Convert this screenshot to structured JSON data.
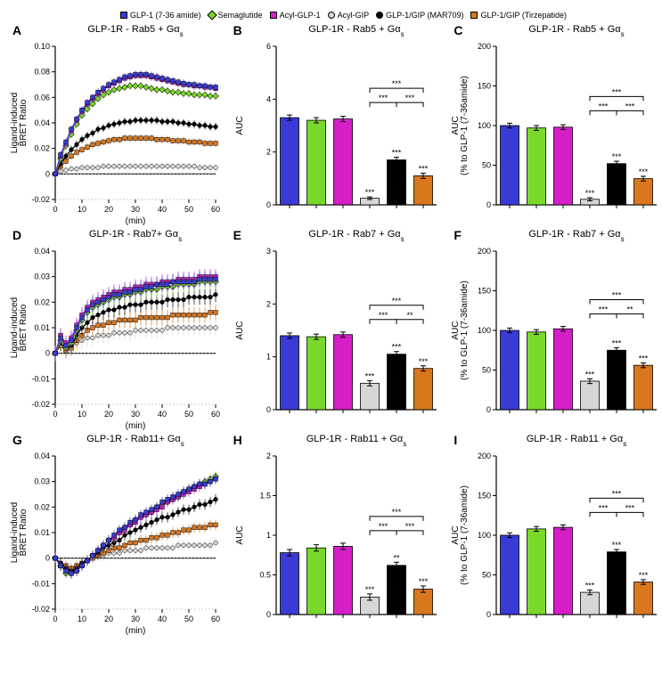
{
  "colors": {
    "glp1736": "#3a3ad6",
    "semaglutide": "#7ad82a",
    "acylglp1": "#d61fc8",
    "acylgip": "#d6d6d6",
    "mar709": "#000000",
    "tirzepatide": "#d9771f",
    "axis": "#000000",
    "grid": "#e0e0e0",
    "bg": "#ffffff"
  },
  "legend": [
    {
      "label": "GLP-1 (7-36 amide)",
      "color": "#3a3ad6",
      "shape": "square"
    },
    {
      "label": "Semaglutide",
      "color": "#7ad82a",
      "shape": "diamond"
    },
    {
      "label": "Acyl-GLP-1",
      "color": "#d61fc8",
      "shape": "square"
    },
    {
      "label": "Acyl-GIP",
      "color": "#d6d6d6",
      "shape": "circle"
    },
    {
      "label": "GLP-1/GIP (MAR709)",
      "color": "#000000",
      "shape": "circle"
    },
    {
      "label": "GLP-1/GIP (Tirzepatide)",
      "color": "#d9771f",
      "shape": "square"
    }
  ],
  "timepoints": [
    0,
    2,
    4,
    6,
    8,
    10,
    12,
    14,
    16,
    18,
    20,
    22,
    24,
    26,
    28,
    30,
    32,
    34,
    36,
    38,
    40,
    42,
    44,
    46,
    48,
    50,
    52,
    54,
    56,
    58,
    60
  ],
  "panels": {
    "A": {
      "title": "GLP-1R - Rab5 + Gα_s",
      "ylabel": "Ligand-induced\nBRET Ratio",
      "xlabel": "(min)",
      "ylim": [
        -0.02,
        0.1
      ],
      "yticks": [
        -0.02,
        0,
        0.02,
        0.04,
        0.06,
        0.08,
        0.1
      ],
      "xlim": [
        0,
        60
      ],
      "xticks": [
        0,
        10,
        20,
        30,
        40,
        50,
        60
      ],
      "series": {
        "glp1736": [
          0,
          0.015,
          0.025,
          0.035,
          0.043,
          0.05,
          0.056,
          0.06,
          0.064,
          0.067,
          0.07,
          0.072,
          0.074,
          0.076,
          0.077,
          0.078,
          0.078,
          0.078,
          0.077,
          0.076,
          0.075,
          0.074,
          0.073,
          0.072,
          0.071,
          0.07,
          0.07,
          0.069,
          0.069,
          0.068,
          0.068
        ],
        "semaglutide": [
          0,
          0.012,
          0.022,
          0.031,
          0.039,
          0.046,
          0.051,
          0.055,
          0.059,
          0.062,
          0.064,
          0.066,
          0.067,
          0.068,
          0.069,
          0.069,
          0.069,
          0.068,
          0.067,
          0.066,
          0.066,
          0.065,
          0.064,
          0.064,
          0.063,
          0.063,
          0.062,
          0.062,
          0.062,
          0.061,
          0.061
        ],
        "acylglp1": [
          0,
          0.014,
          0.024,
          0.034,
          0.042,
          0.049,
          0.055,
          0.059,
          0.063,
          0.066,
          0.069,
          0.071,
          0.073,
          0.075,
          0.076,
          0.077,
          0.077,
          0.077,
          0.076,
          0.075,
          0.074,
          0.073,
          0.072,
          0.071,
          0.07,
          0.07,
          0.069,
          0.069,
          0.068,
          0.068,
          0.067
        ],
        "acylgip": [
          0,
          0.002,
          0.003,
          0.004,
          0.004,
          0.005,
          0.005,
          0.005,
          0.005,
          0.006,
          0.006,
          0.006,
          0.006,
          0.006,
          0.006,
          0.006,
          0.006,
          0.006,
          0.006,
          0.006,
          0.006,
          0.006,
          0.006,
          0.006,
          0.006,
          0.006,
          0.006,
          0.005,
          0.005,
          0.005,
          0.005
        ],
        "mar709": [
          0,
          0.008,
          0.014,
          0.019,
          0.023,
          0.027,
          0.03,
          0.032,
          0.035,
          0.036,
          0.038,
          0.039,
          0.04,
          0.041,
          0.041,
          0.042,
          0.042,
          0.042,
          0.042,
          0.042,
          0.041,
          0.041,
          0.041,
          0.04,
          0.04,
          0.039,
          0.039,
          0.038,
          0.038,
          0.037,
          0.037
        ],
        "tirzepatide": [
          0,
          0.006,
          0.01,
          0.014,
          0.017,
          0.019,
          0.021,
          0.023,
          0.024,
          0.025,
          0.026,
          0.027,
          0.027,
          0.028,
          0.028,
          0.028,
          0.028,
          0.028,
          0.028,
          0.027,
          0.027,
          0.027,
          0.026,
          0.026,
          0.026,
          0.025,
          0.025,
          0.025,
          0.024,
          0.024,
          0.024
        ]
      },
      "err": 0.003
    },
    "B": {
      "title": "GLP-1R - Rab5 + Gα_s",
      "ylabel": "AUC",
      "ylim": [
        0,
        6
      ],
      "yticks": [
        0,
        2,
        4,
        6
      ],
      "bars": [
        {
          "k": "glp1736",
          "v": 3.3,
          "e": 0.1
        },
        {
          "k": "semaglutide",
          "v": 3.2,
          "e": 0.1
        },
        {
          "k": "acylglp1",
          "v": 3.25,
          "e": 0.1
        },
        {
          "k": "acylgip",
          "v": 0.25,
          "e": 0.05,
          "sig": "***"
        },
        {
          "k": "mar709",
          "v": 1.7,
          "e": 0.1,
          "sig": "***"
        },
        {
          "k": "tirzepatide",
          "v": 1.1,
          "e": 0.1,
          "sig": "***"
        }
      ],
      "brackets": [
        {
          "a": 3,
          "b": 4,
          "lvl": 0,
          "sig": "***"
        },
        {
          "a": 3,
          "b": 5,
          "lvl": 1,
          "sig": "***"
        },
        {
          "a": 4,
          "b": 5,
          "lvl": 0,
          "sig": "***"
        }
      ]
    },
    "C": {
      "title": "GLP-1R - Rab5 + Gα_s",
      "ylabel": "AUC\n(% to GLP-1 (7-36amide)",
      "ylim": [
        0,
        200
      ],
      "yticks": [
        0,
        50,
        100,
        150,
        200
      ],
      "bars": [
        {
          "k": "glp1736",
          "v": 100,
          "e": 3
        },
        {
          "k": "semaglutide",
          "v": 97,
          "e": 3
        },
        {
          "k": "acylglp1",
          "v": 98,
          "e": 3
        },
        {
          "k": "acylgip",
          "v": 7,
          "e": 2,
          "sig": "***"
        },
        {
          "k": "mar709",
          "v": 52,
          "e": 3,
          "sig": "***"
        },
        {
          "k": "tirzepatide",
          "v": 33,
          "e": 3,
          "sig": "***"
        }
      ],
      "brackets": [
        {
          "a": 3,
          "b": 4,
          "lvl": 0,
          "sig": "***"
        },
        {
          "a": 3,
          "b": 5,
          "lvl": 1,
          "sig": "***"
        },
        {
          "a": 4,
          "b": 5,
          "lvl": 0,
          "sig": "***"
        }
      ]
    },
    "D": {
      "title": "GLP-1R - Rab7+ Gα_s",
      "ylabel": "Ligand-induced\nBRET Ratio",
      "xlabel": "(min)",
      "ylim": [
        -0.02,
        0.04
      ],
      "yticks": [
        -0.02,
        -0.01,
        0,
        0.01,
        0.02,
        0.03,
        0.04
      ],
      "xlim": [
        0,
        60
      ],
      "xticks": [
        0,
        10,
        20,
        30,
        40,
        50,
        60
      ],
      "series": {
        "glp1736": [
          0,
          0.006,
          0.003,
          0.005,
          0.01,
          0.014,
          0.017,
          0.019,
          0.02,
          0.021,
          0.022,
          0.023,
          0.023,
          0.024,
          0.024,
          0.025,
          0.025,
          0.026,
          0.026,
          0.027,
          0.027,
          0.027,
          0.028,
          0.028,
          0.028,
          0.028,
          0.028,
          0.029,
          0.029,
          0.029,
          0.029
        ],
        "semaglutide": [
          0,
          0.005,
          0.002,
          0.004,
          0.009,
          0.013,
          0.016,
          0.018,
          0.019,
          0.02,
          0.021,
          0.022,
          0.022,
          0.023,
          0.023,
          0.024,
          0.024,
          0.025,
          0.025,
          0.025,
          0.026,
          0.026,
          0.026,
          0.027,
          0.027,
          0.027,
          0.027,
          0.028,
          0.028,
          0.028,
          0.028
        ],
        "acylglp1": [
          0,
          0.007,
          0.004,
          0.006,
          0.011,
          0.015,
          0.018,
          0.02,
          0.021,
          0.022,
          0.023,
          0.024,
          0.024,
          0.025,
          0.025,
          0.026,
          0.026,
          0.027,
          0.027,
          0.027,
          0.028,
          0.028,
          0.028,
          0.029,
          0.029,
          0.029,
          0.029,
          0.03,
          0.03,
          0.03,
          0.03
        ],
        "acylgip": [
          0,
          0.003,
          0.001,
          0.002,
          0.004,
          0.005,
          0.006,
          0.006,
          0.007,
          0.007,
          0.007,
          0.008,
          0.008,
          0.008,
          0.008,
          0.009,
          0.009,
          0.009,
          0.009,
          0.009,
          0.009,
          0.01,
          0.01,
          0.01,
          0.01,
          0.01,
          0.01,
          0.01,
          0.01,
          0.01,
          0.01
        ],
        "mar709": [
          0,
          0.004,
          0.002,
          0.003,
          0.007,
          0.01,
          0.012,
          0.014,
          0.015,
          0.016,
          0.017,
          0.017,
          0.018,
          0.018,
          0.019,
          0.019,
          0.019,
          0.02,
          0.02,
          0.02,
          0.02,
          0.021,
          0.021,
          0.021,
          0.021,
          0.022,
          0.022,
          0.022,
          0.022,
          0.022,
          0.023
        ],
        "tirzepatide": [
          0,
          0.003,
          0.001,
          0.002,
          0.005,
          0.007,
          0.009,
          0.01,
          0.011,
          0.011,
          0.012,
          0.012,
          0.013,
          0.013,
          0.013,
          0.013,
          0.014,
          0.014,
          0.014,
          0.014,
          0.014,
          0.014,
          0.015,
          0.015,
          0.015,
          0.015,
          0.015,
          0.015,
          0.015,
          0.016,
          0.016
        ]
      },
      "err": 0.003
    },
    "E": {
      "title": "GLP-1R - Rab7 + Gα_s",
      "ylabel": "AUC",
      "ylim": [
        0,
        3
      ],
      "yticks": [
        0,
        1,
        2,
        3
      ],
      "bars": [
        {
          "k": "glp1736",
          "v": 1.4,
          "e": 0.05
        },
        {
          "k": "semaglutide",
          "v": 1.38,
          "e": 0.05
        },
        {
          "k": "acylglp1",
          "v": 1.42,
          "e": 0.05
        },
        {
          "k": "acylgip",
          "v": 0.5,
          "e": 0.05,
          "sig": "***"
        },
        {
          "k": "mar709",
          "v": 1.05,
          "e": 0.05,
          "sig": "***"
        },
        {
          "k": "tirzepatide",
          "v": 0.78,
          "e": 0.05,
          "sig": "***"
        }
      ],
      "brackets": [
        {
          "a": 3,
          "b": 4,
          "lvl": 0,
          "sig": "***"
        },
        {
          "a": 3,
          "b": 5,
          "lvl": 1,
          "sig": "***"
        },
        {
          "a": 4,
          "b": 5,
          "lvl": 0,
          "sig": "**"
        }
      ]
    },
    "F": {
      "title": "GLP-1R - Rab7 + Gα_s",
      "ylabel": "AUC\n(% to GLP-1 (7-36amide)",
      "ylim": [
        0,
        200
      ],
      "yticks": [
        0,
        50,
        100,
        150,
        200
      ],
      "bars": [
        {
          "k": "glp1736",
          "v": 100,
          "e": 3
        },
        {
          "k": "semaglutide",
          "v": 98,
          "e": 3
        },
        {
          "k": "acylglp1",
          "v": 102,
          "e": 3
        },
        {
          "k": "acylgip",
          "v": 36,
          "e": 3,
          "sig": "***"
        },
        {
          "k": "mar709",
          "v": 75,
          "e": 3,
          "sig": "***"
        },
        {
          "k": "tirzepatide",
          "v": 56,
          "e": 3,
          "sig": "***"
        }
      ],
      "brackets": [
        {
          "a": 3,
          "b": 4,
          "lvl": 0,
          "sig": "***"
        },
        {
          "a": 3,
          "b": 5,
          "lvl": 1,
          "sig": "***"
        },
        {
          "a": 4,
          "b": 5,
          "lvl": 0,
          "sig": "**"
        }
      ]
    },
    "G": {
      "title": "GLP-1R - Rab11+ Gα_s",
      "ylabel": "Ligand-induced\nBRET Ratio",
      "xlabel": "(min)",
      "ylim": [
        -0.02,
        0.04
      ],
      "yticks": [
        -0.02,
        -0.01,
        0,
        0.01,
        0.02,
        0.03,
        0.04
      ],
      "xlim": [
        0,
        60
      ],
      "xticks": [
        0,
        10,
        20,
        30,
        40,
        50,
        60
      ],
      "series": {
        "glp1736": [
          0,
          -0.003,
          -0.005,
          -0.006,
          -0.005,
          -0.003,
          -0.001,
          0.001,
          0.003,
          0.005,
          0.007,
          0.009,
          0.011,
          0.012,
          0.014,
          0.015,
          0.017,
          0.018,
          0.019,
          0.02,
          0.022,
          0.023,
          0.024,
          0.025,
          0.026,
          0.027,
          0.028,
          0.029,
          0.029,
          0.03,
          0.031
        ],
        "semaglutide": [
          0,
          -0.003,
          -0.006,
          -0.006,
          -0.005,
          -0.003,
          -0.001,
          0.001,
          0.003,
          0.005,
          0.007,
          0.008,
          0.01,
          0.012,
          0.013,
          0.015,
          0.016,
          0.017,
          0.018,
          0.02,
          0.021,
          0.022,
          0.023,
          0.024,
          0.026,
          0.027,
          0.028,
          0.029,
          0.03,
          0.031,
          0.032
        ],
        "acylglp1": [
          0,
          -0.003,
          -0.005,
          -0.006,
          -0.005,
          -0.003,
          -0.001,
          0.001,
          0.003,
          0.005,
          0.007,
          0.008,
          0.01,
          0.011,
          0.013,
          0.014,
          0.016,
          0.017,
          0.018,
          0.019,
          0.02,
          0.022,
          0.023,
          0.024,
          0.025,
          0.026,
          0.027,
          0.028,
          0.029,
          0.03,
          0.031
        ],
        "acylgip": [
          0,
          -0.002,
          -0.003,
          -0.004,
          -0.003,
          -0.002,
          -0.001,
          0.0,
          0.001,
          0.001,
          0.002,
          0.002,
          0.002,
          0.003,
          0.003,
          0.003,
          0.003,
          0.004,
          0.004,
          0.004,
          0.004,
          0.004,
          0.004,
          0.005,
          0.005,
          0.005,
          0.005,
          0.005,
          0.005,
          0.005,
          0.006
        ],
        "mar709": [
          0,
          -0.002,
          -0.004,
          -0.005,
          -0.004,
          -0.002,
          -0.001,
          0.001,
          0.002,
          0.004,
          0.005,
          0.006,
          0.007,
          0.009,
          0.01,
          0.011,
          0.012,
          0.013,
          0.014,
          0.015,
          0.016,
          0.016,
          0.017,
          0.018,
          0.019,
          0.019,
          0.02,
          0.021,
          0.021,
          0.022,
          0.023
        ],
        "tirzepatide": [
          0,
          -0.002,
          -0.003,
          -0.004,
          -0.003,
          -0.002,
          -0.001,
          0.0,
          0.001,
          0.002,
          0.003,
          0.004,
          0.004,
          0.005,
          0.006,
          0.006,
          0.007,
          0.007,
          0.008,
          0.008,
          0.009,
          0.009,
          0.01,
          0.01,
          0.011,
          0.011,
          0.012,
          0.012,
          0.012,
          0.013,
          0.013
        ]
      },
      "err": 0.002
    },
    "H": {
      "title": "GLP-1R - Rab11 + Gα_s",
      "ylabel": "AUC",
      "ylim": [
        0,
        2
      ],
      "yticks": [
        0,
        0.5,
        1.0,
        1.5,
        2.0
      ],
      "bars": [
        {
          "k": "glp1736",
          "v": 0.78,
          "e": 0.04
        },
        {
          "k": "semaglutide",
          "v": 0.84,
          "e": 0.04
        },
        {
          "k": "acylglp1",
          "v": 0.86,
          "e": 0.04
        },
        {
          "k": "acylgip",
          "v": 0.22,
          "e": 0.04,
          "sig": "***"
        },
        {
          "k": "mar709",
          "v": 0.62,
          "e": 0.04,
          "sig": "**"
        },
        {
          "k": "tirzepatide",
          "v": 0.32,
          "e": 0.04,
          "sig": "***"
        }
      ],
      "brackets": [
        {
          "a": 3,
          "b": 4,
          "lvl": 0,
          "sig": "***"
        },
        {
          "a": 3,
          "b": 5,
          "lvl": 1,
          "sig": "***"
        },
        {
          "a": 4,
          "b": 5,
          "lvl": 0,
          "sig": "***"
        }
      ]
    },
    "I": {
      "title": "GLP-1R - Rab11 + Gα_s",
      "ylabel": "AUC\n(% to GLP-1 (7-36amide)",
      "ylim": [
        0,
        200
      ],
      "yticks": [
        0,
        50,
        100,
        150,
        200
      ],
      "bars": [
        {
          "k": "glp1736",
          "v": 100,
          "e": 3
        },
        {
          "k": "semaglutide",
          "v": 108,
          "e": 3
        },
        {
          "k": "acylglp1",
          "v": 110,
          "e": 3
        },
        {
          "k": "acylgip",
          "v": 28,
          "e": 3,
          "sig": "***"
        },
        {
          "k": "mar709",
          "v": 79,
          "e": 3,
          "sig": "***"
        },
        {
          "k": "tirzepatide",
          "v": 41,
          "e": 3,
          "sig": "***"
        }
      ],
      "brackets": [
        {
          "a": 3,
          "b": 4,
          "lvl": 0,
          "sig": "***"
        },
        {
          "a": 3,
          "b": 5,
          "lvl": 1,
          "sig": "***"
        },
        {
          "a": 4,
          "b": 5,
          "lvl": 0,
          "sig": "***"
        }
      ]
    }
  },
  "labels": {
    "A": "A",
    "B": "B",
    "C": "C",
    "D": "D",
    "E": "E",
    "F": "F",
    "G": "G",
    "H": "H",
    "I": "I"
  },
  "bar_width": 0.7
}
